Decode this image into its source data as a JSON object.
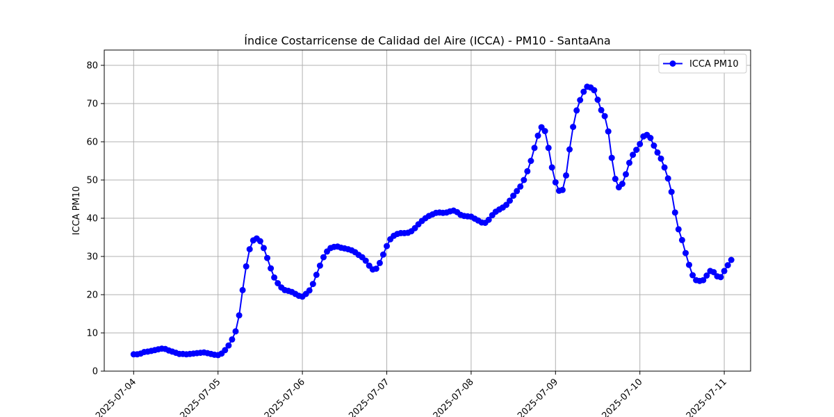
{
  "chart_data": {
    "type": "line",
    "title": "Índice Costarricense de Calidad del Aire (ICCA) - PM10 - SantaAna",
    "xlabel": "",
    "ylabel": "ICCA PM10",
    "ylim": [
      0,
      84
    ],
    "yticks": [
      0,
      10,
      20,
      30,
      40,
      50,
      60,
      70,
      80
    ],
    "xticks": [
      "2025-07-04",
      "2025-07-05",
      "2025-07-06",
      "2025-07-07",
      "2025-07-08",
      "2025-07-09",
      "2025-07-10",
      "2025-07-11"
    ],
    "grid": true,
    "legend_position": "top-right",
    "line_color": "#0000ff",
    "series": [
      {
        "name": "ICCA PM10",
        "start": "2025-07-04T00:00",
        "interval_hours": 1,
        "values": [
          4.4,
          4.4,
          4.6,
          5.0,
          5.1,
          5.3,
          5.5,
          5.7,
          5.9,
          5.8,
          5.4,
          5.1,
          4.8,
          4.5,
          4.5,
          4.4,
          4.5,
          4.6,
          4.7,
          4.8,
          4.9,
          4.7,
          4.5,
          4.3,
          4.2,
          4.6,
          5.5,
          6.7,
          8.3,
          10.4,
          14.6,
          21.2,
          27.4,
          31.9,
          34.2,
          34.7,
          34.0,
          32.2,
          29.6,
          26.9,
          24.5,
          23.0,
          21.9,
          21.2,
          21.0,
          20.7,
          20.2,
          19.7,
          19.5,
          20.2,
          21.1,
          22.8,
          25.2,
          27.6,
          29.8,
          31.3,
          32.2,
          32.5,
          32.6,
          32.3,
          32.1,
          31.9,
          31.6,
          31.1,
          30.4,
          29.8,
          28.9,
          27.6,
          26.6,
          26.8,
          28.3,
          30.5,
          32.7,
          34.5,
          35.4,
          35.9,
          36.1,
          36.1,
          36.2,
          36.6,
          37.4,
          38.4,
          39.3,
          40.0,
          40.6,
          41.0,
          41.4,
          41.5,
          41.4,
          41.5,
          41.8,
          42.0,
          41.6,
          40.9,
          40.6,
          40.5,
          40.4,
          39.9,
          39.4,
          38.9,
          38.8,
          39.6,
          40.8,
          41.7,
          42.3,
          42.8,
          43.5,
          44.6,
          45.9,
          47.1,
          48.3,
          50.0,
          52.3,
          55.0,
          58.4,
          61.6,
          63.8,
          62.8,
          58.4,
          53.3,
          49.4,
          47.2,
          47.4,
          51.2,
          58.0,
          63.9,
          68.2,
          70.9,
          73.1,
          74.4,
          74.2,
          73.5,
          71.0,
          68.3,
          66.7,
          62.7,
          55.8,
          50.3,
          48.1,
          49.0,
          51.5,
          54.5,
          56.6,
          57.9,
          59.4,
          61.4,
          61.8,
          61.0,
          59.0,
          57.2,
          55.6,
          53.3,
          50.4,
          46.9,
          41.5,
          37.1,
          34.3,
          30.9,
          27.8,
          25.1,
          23.8,
          23.6,
          23.8,
          25.0,
          26.2,
          25.9,
          24.8,
          24.6,
          26.2,
          27.7,
          29.1
        ]
      }
    ]
  }
}
